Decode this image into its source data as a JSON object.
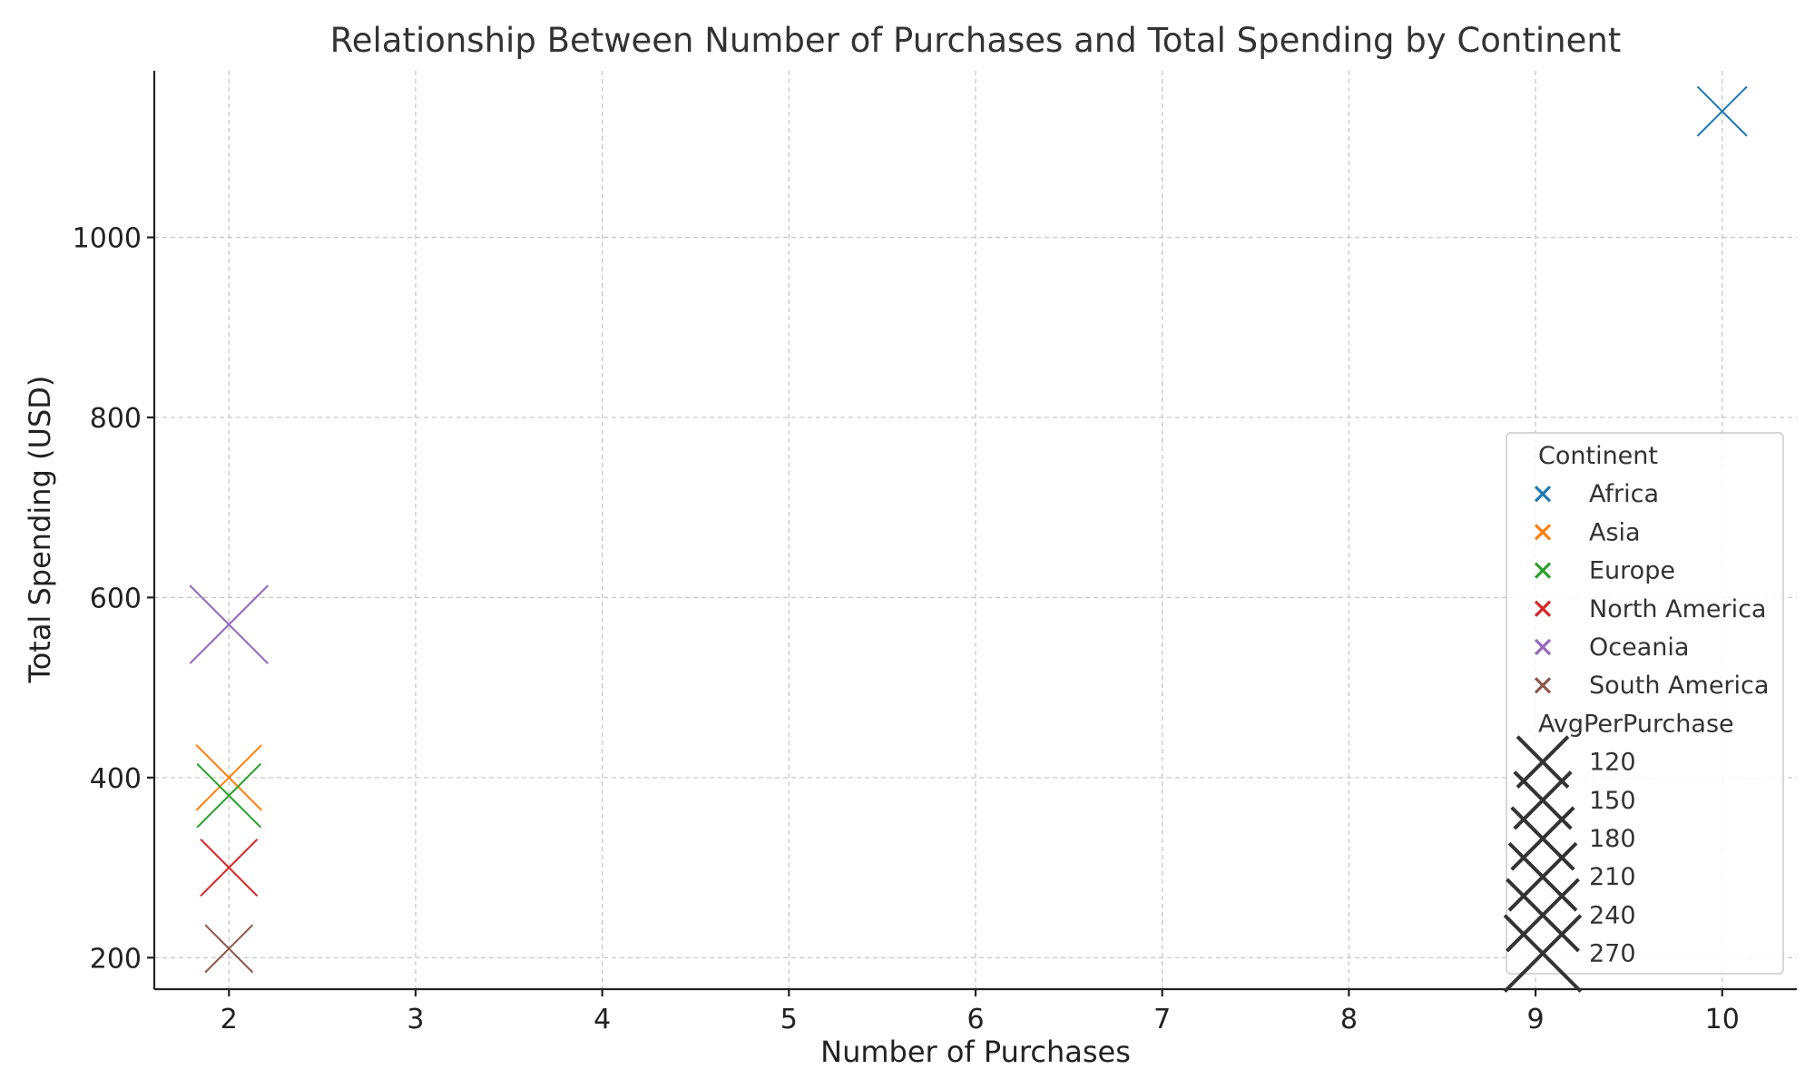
{
  "chart_data": {
    "type": "scatter",
    "title": "Relationship Between Number of Purchases and Total Spending by Continent",
    "xlabel": "Number of Purchases",
    "ylabel": "Total Spending (USD)",
    "xlim": [
      1.6,
      10.4
    ],
    "ylim": [
      165,
      1185
    ],
    "xticks": [
      2,
      3,
      4,
      5,
      6,
      7,
      8,
      9,
      10
    ],
    "yticks": [
      200,
      400,
      600,
      800,
      1000
    ],
    "grid": true,
    "marker": "x",
    "series": [
      {
        "name": "Africa",
        "color": "#1f77b4",
        "points": [
          {
            "x": 10,
            "y": 1140,
            "size": 114
          }
        ]
      },
      {
        "name": "Asia",
        "color": "#ff7f0e",
        "points": [
          {
            "x": 2,
            "y": 400,
            "size": 200
          }
        ]
      },
      {
        "name": "Europe",
        "color": "#2ca02c",
        "points": [
          {
            "x": 2,
            "y": 380,
            "size": 190
          }
        ]
      },
      {
        "name": "North America",
        "color": "#d62728",
        "points": [
          {
            "x": 2,
            "y": 300,
            "size": 150
          }
        ]
      },
      {
        "name": "Oceania",
        "color": "#9467bd",
        "points": [
          {
            "x": 2,
            "y": 570,
            "size": 285
          }
        ]
      },
      {
        "name": "South America",
        "color": "#8c564b",
        "points": [
          {
            "x": 2,
            "y": 210,
            "size": 105
          }
        ]
      }
    ],
    "legend": {
      "placement": "lower-right",
      "hue_title": "Continent",
      "size_title": "AvgPerPurchase",
      "size_entries": [
        120,
        150,
        180,
        210,
        240,
        270
      ],
      "size_color": "#333333"
    }
  }
}
